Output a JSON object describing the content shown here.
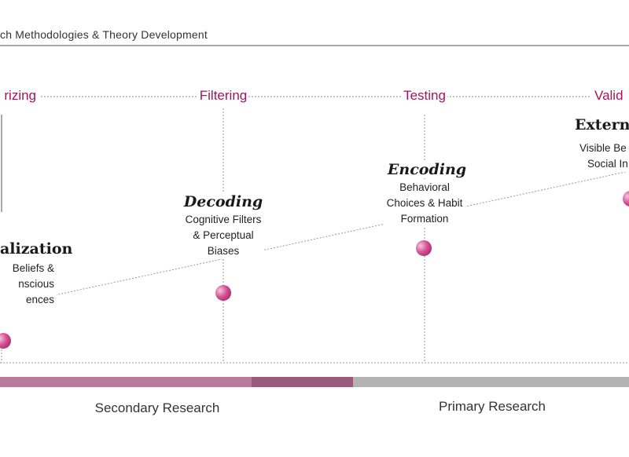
{
  "header": {
    "title": "ch Methodologies & Theory Development"
  },
  "phases": [
    {
      "label": "rizing"
    },
    {
      "label": "Filtering"
    },
    {
      "label": "Testing"
    },
    {
      "label": "Valid"
    }
  ],
  "stages": [
    {
      "title": "alization",
      "lines": [
        "Beliefs &",
        "nscious",
        "ences"
      ]
    },
    {
      "title": "Decoding",
      "lines": [
        "Cognitive Filters",
        "& Perceptual",
        "Biases"
      ]
    },
    {
      "title": "Encoding",
      "lines": [
        "Behavioral",
        "Choices & Habit",
        "Formation"
      ]
    },
    {
      "title": "Externa",
      "lines": [
        "Visible Be",
        "Social In"
      ]
    }
  ],
  "research": {
    "secondary": "Secondary Research",
    "primary": "Primary Research"
  },
  "colors": {
    "accent": "#a3145e",
    "bar_secondary": "#b97a9a",
    "bar_transition": "#9b5a7c",
    "bar_primary": "#b3b3b3"
  }
}
